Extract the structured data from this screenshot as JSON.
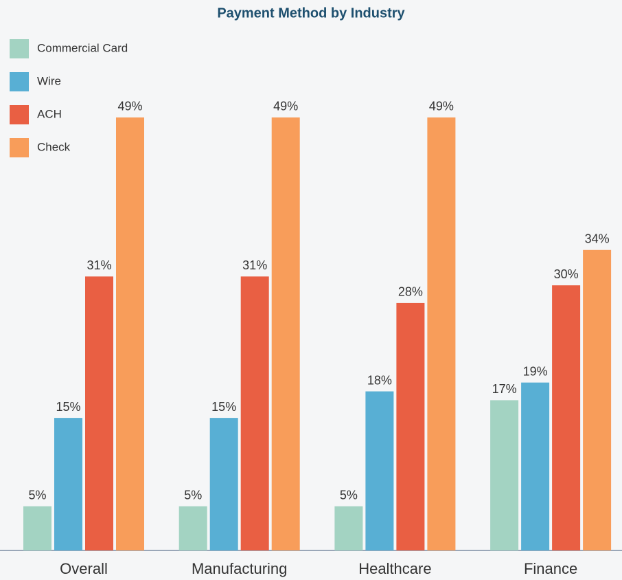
{
  "chart_data": {
    "type": "bar",
    "title": "Payment Method by Industry",
    "categories": [
      "Overall",
      "Manufacturing",
      "Healthcare",
      "Finance"
    ],
    "series": [
      {
        "name": "Commercial Card",
        "color": "#a3d3c2",
        "values": [
          5,
          5,
          5,
          17
        ],
        "value_labels": [
          "5%",
          "5%",
          "5%",
          "17%"
        ]
      },
      {
        "name": "Wire",
        "color": "#58afd4",
        "values": [
          15,
          15,
          18,
          19
        ],
        "value_labels": [
          "15%",
          "15%",
          "18%",
          "19%"
        ]
      },
      {
        "name": "ACH",
        "color": "#e95f43",
        "values": [
          31,
          31,
          28,
          30
        ],
        "value_labels": [
          "31%",
          "31%",
          "28%",
          "30%"
        ]
      },
      {
        "name": "Check",
        "color": "#f89d5a",
        "values": [
          49,
          49,
          49,
          34
        ],
        "value_labels": [
          "49%",
          "49%",
          "49%",
          "34%"
        ]
      }
    ],
    "legend": "top-left"
  }
}
